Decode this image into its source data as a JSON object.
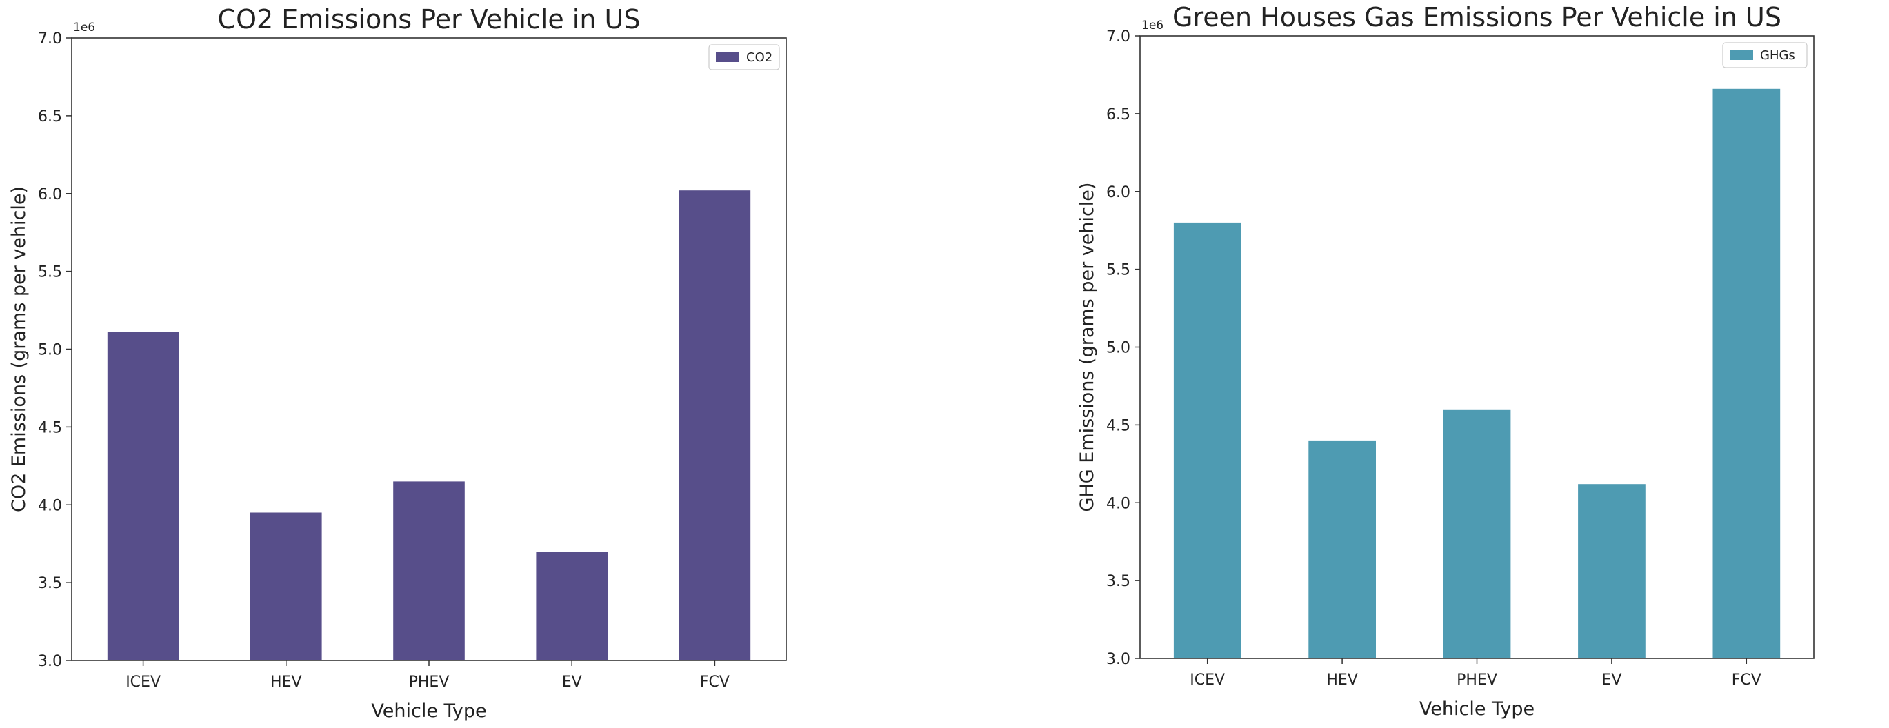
{
  "chart_data": [
    {
      "type": "bar",
      "title": "CO2 Emissions Per Vehicle in US",
      "xlabel": "Vehicle Type",
      "ylabel": "CO2 Emissions (grams per vehicle)",
      "y_exponent_label": "1e6",
      "categories": [
        "ICEV",
        "HEV",
        "PHEV",
        "EV",
        "FCV"
      ],
      "series": [
        {
          "name": "CO2",
          "values": [
            5110000,
            3950000,
            4150000,
            3700000,
            6020000
          ]
        }
      ],
      "ylim": [
        3.0,
        7.0
      ],
      "y_scale_factor": 1000000,
      "yticks": [
        "3.0",
        "3.5",
        "4.0",
        "4.5",
        "5.0",
        "5.5",
        "6.0",
        "6.5",
        "7.0"
      ],
      "color": "#574e8a",
      "legend_position": "upper-right",
      "grid": false
    },
    {
      "type": "bar",
      "title": "Green Houses Gas Emissions Per Vehicle in US",
      "xlabel": "Vehicle Type",
      "ylabel": "GHG Emissions (grams per vehicle)",
      "y_exponent_label": "1e6",
      "categories": [
        "ICEV",
        "HEV",
        "PHEV",
        "EV",
        "FCV"
      ],
      "series": [
        {
          "name": "GHGs",
          "values": [
            5800000,
            4400000,
            4600000,
            4120000,
            6660000
          ]
        }
      ],
      "ylim": [
        3.0,
        7.0
      ],
      "y_scale_factor": 1000000,
      "yticks": [
        "3.0",
        "3.5",
        "4.0",
        "4.5",
        "5.0",
        "5.5",
        "6.0",
        "6.5",
        "7.0"
      ],
      "color": "#4e9bb2",
      "legend_position": "upper-right",
      "grid": false
    }
  ]
}
